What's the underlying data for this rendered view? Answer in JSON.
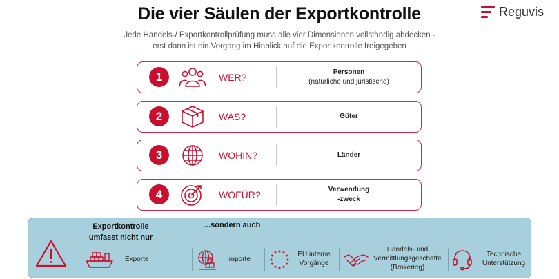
{
  "header": {
    "title": "Die vier Säulen der Exportkontrolle",
    "subtitle_line1": "Jede Handels-/ Exportkontrollprüfung muss alle vier Dimensionen vollständig abdecken -",
    "subtitle_line2": "erst dann ist ein Vorgang im Hinblick auf die Exportkontrolle freigegeben",
    "logo_text": "Reguvis"
  },
  "colors": {
    "accent": "#c8102e",
    "panel": "#a8d0dc",
    "text": "#1a1a1a"
  },
  "pillars": [
    {
      "number": "1",
      "icon": "people-icon",
      "question": "WER?",
      "answer_line1": "Personen",
      "answer_line2": "(natürliche und juristische)"
    },
    {
      "number": "2",
      "icon": "box-icon",
      "question": "WAS?",
      "answer_line1": "Güter",
      "answer_line2": ""
    },
    {
      "number": "3",
      "icon": "globe-icon",
      "question": "WOHIN?",
      "answer_line1": "Länder",
      "answer_line2": ""
    },
    {
      "number": "4",
      "icon": "target-icon",
      "question": "WOFÜR?",
      "answer_line1": "Verwendung",
      "answer_line2": "-zweck"
    }
  ],
  "panel": {
    "heading_left_line1": "Exportkontrolle",
    "heading_left_line2": "umfasst nicht nur",
    "heading_right": "...sondern auch",
    "items": [
      {
        "icon": "ship-icon",
        "label": "Exporte"
      },
      {
        "icon": "import-icon",
        "label": "Importe"
      },
      {
        "icon": "eu-stars-icon",
        "label_line1": "EU interne",
        "label_line2": "Vorgänge"
      },
      {
        "icon": "handshake-icon",
        "label_line1": "Handels- und",
        "label_line2": "Vermittlungsgeschäfte",
        "label_line3": "(Brokering)"
      },
      {
        "icon": "headset-icon",
        "label_line1": "Technische",
        "label_line2": "Unterstützung"
      }
    ]
  }
}
